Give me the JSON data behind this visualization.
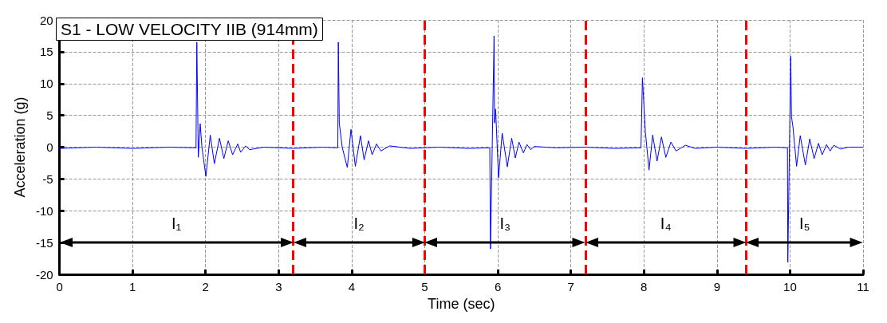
{
  "chart_data": {
    "type": "line",
    "title": "S1 - LOW VELOCITY IIB (914mm)",
    "xlabel": "Time (sec)",
    "ylabel": "Acceleration (g)",
    "xlim": [
      0,
      11
    ],
    "xticks": [
      0,
      1,
      2,
      3,
      4,
      5,
      6,
      7,
      8,
      9,
      10,
      11
    ],
    "ylim": [
      -20,
      20
    ],
    "yticks": [
      -20,
      -15,
      -10,
      -5,
      0,
      5,
      10,
      15,
      20
    ],
    "grid": true,
    "marker": "none",
    "line_style": "solid",
    "series": [
      {
        "color": "#0000ff",
        "x": [
          0,
          0.5,
          1,
          1.5,
          1.869,
          1.88,
          1.9,
          1.926,
          1.95,
          2.004,
          2.064,
          2.12,
          2.19,
          2.25,
          2.31,
          2.37,
          2.44,
          2.48,
          2.55,
          2.6,
          2.8,
          3.2,
          3.6,
          3.81,
          3.817,
          3.83,
          3.87,
          3.94,
          3.99,
          4.05,
          4.12,
          4.17,
          4.23,
          4.28,
          4.34,
          4.4,
          4.52,
          4.8,
          5.2,
          5.6,
          5.89,
          5.9,
          5.949,
          5.955,
          5.97,
          6.01,
          6.06,
          6.13,
          6.19,
          6.24,
          6.29,
          6.35,
          6.4,
          6.45,
          6.5,
          6.8,
          7.2,
          7.6,
          7.96,
          7.98,
          8.02,
          8.07,
          8.12,
          8.18,
          8.24,
          8.3,
          8.37,
          8.44,
          8.57,
          8.7,
          9.0,
          9.4,
          9.8,
          9.965,
          9.97,
          10.01,
          10.02,
          10.04,
          10.09,
          10.14,
          10.21,
          10.27,
          10.33,
          10.39,
          10.44,
          10.5,
          10.55,
          10.6,
          10.69,
          10.8,
          11
        ],
        "values": [
          -0.2,
          0,
          -0.2,
          0,
          -0.1,
          16.5,
          -1.6,
          3.7,
          0,
          -4.6,
          1.9,
          -2.6,
          1.4,
          -1.8,
          1,
          -1.2,
          0.5,
          -0.8,
          0.2,
          -0.4,
          0,
          -0.2,
          0,
          -0.1,
          16.5,
          3.8,
          0,
          -3.2,
          2.8,
          -3,
          1.8,
          -2,
          1,
          -1.2,
          0.5,
          -0.6,
          0.2,
          -0.2,
          0,
          -0.2,
          -0.1,
          -16,
          17.5,
          3.8,
          6,
          -4.8,
          2.2,
          -3.1,
          1.4,
          -1.7,
          0.8,
          -0.9,
          0.4,
          -0.4,
          0.1,
          -0.1,
          0,
          -0.2,
          -0.1,
          10.9,
          2.4,
          -3.6,
          1.9,
          -2.2,
          1.6,
          -1.6,
          0.8,
          -0.6,
          0.3,
          -0.2,
          0,
          -0.2,
          0,
          -0.1,
          -18.1,
          14.3,
          4.8,
          3.2,
          -3,
          1.8,
          -2.8,
          1.3,
          -1.8,
          0.6,
          -1.2,
          0.4,
          -0.6,
          0.3,
          -0.3,
          0,
          0
        ]
      }
    ],
    "ref_lines": [
      {
        "axis": "x",
        "value": 3.2,
        "color": "#ff0000",
        "line_style": "dashed"
      },
      {
        "axis": "x",
        "value": 5.0,
        "color": "#ff0000",
        "line_style": "dashed"
      },
      {
        "axis": "x",
        "value": 7.2,
        "color": "#ff0000",
        "line_style": "dashed"
      },
      {
        "axis": "x",
        "value": 9.4,
        "color": "#ff0000",
        "line_style": "dashed"
      }
    ],
    "annotations": [
      "I₁",
      "I₂",
      "I₃",
      "I₄",
      "I₅"
    ]
  }
}
